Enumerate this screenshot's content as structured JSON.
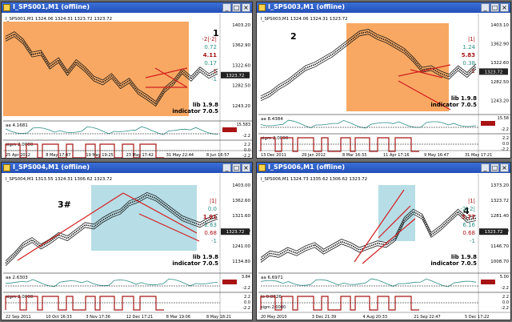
{
  "windows": [
    {
      "title": "I_SPS001,M1 (offline)",
      "info": "I_SPS001,M1  1324.06 1324.31 1323.72 1323.72",
      "number": "1",
      "lib": "lib 1.9.8",
      "indicator": "indicator 7.0.5",
      "price_labels": [
        "1403.20",
        "1362.90",
        "1322.60",
        "1282.50",
        "1243.20"
      ],
      "current_price": "1323.72",
      "ratios": [
        "-2|-2|",
        "0.72",
        "4.11",
        "0.17",
        "1",
        "-1"
      ],
      "sub1_label": "aa 4.1681",
      "sub1_scale": [
        "15.583",
        "0.00",
        "-2.2"
      ],
      "sub2_label": "sigm 2.0000",
      "sub2_scale": [
        "2.2",
        "0.0",
        "-2.2"
      ],
      "dates": [
        "25 Apr 2012",
        "8 May 17:47",
        "19 May 19:25",
        "23 May 17:42",
        "31 May 22:44",
        "8 Jun 16:57"
      ]
    },
    {
      "title": "I_SPS003,M1 (offline)",
      "info": "I_SPS003,M1  1324.06 1324.31 1323.72",
      "number": "2",
      "lib": "lib 1.9.8",
      "indicator": "indicator 7.0.5",
      "price_labels": [
        "1403.10",
        "1362.90",
        "1322.60",
        "1282.50",
        "1243.20"
      ],
      "current_price": "1323.72",
      "ratios": [
        "|1|",
        "1.24",
        "5.83",
        "0.38",
        "-1"
      ],
      "sub1_label": "aa 8.4384",
      "sub1_scale": [
        "15.58",
        "0.00",
        "-2.2"
      ],
      "sub2_label": "sigm 2.0000",
      "sub2_scale": [
        "2.2",
        "0.0",
        "-2.2"
      ],
      "dates": [
        "13 Dec 2011",
        "29 Jan 2012",
        "8 Mar 16:33",
        "11 Apr 17:16",
        "9 May 16:47",
        "31 May 17:21"
      ]
    },
    {
      "title": "I_SPS004,M1 (offline)",
      "info": "I_SPS004,M1  1313.55 1324.31 1306.62 1323.72",
      "number": "3#",
      "lib": "lib 1.9.8",
      "indicator": "indicator 7.0.5",
      "price_labels": [
        "1403.00",
        "1362.60",
        "1321.60",
        "1281.40",
        "1241.00",
        "1134.80"
      ],
      "current_price": "1323.72",
      "ratios": [
        "|1|",
        "0.0",
        "1.91",
        "2.63",
        "0.68",
        "-1"
      ],
      "sub1_label": "aa 2.6303",
      "sub1_scale": [
        "3.84",
        "0.00",
        "-2.2"
      ],
      "sub2_label": "sigm 2.0000",
      "sub2_scale": [
        "2.2",
        "0.0",
        "-2.2"
      ],
      "dates": [
        "22 Sep 2011",
        "10 Oct 16:33",
        "3 Nov 17:36",
        "12 Dec 17:21",
        "8 Mar 19:06",
        "8 May 18:21"
      ]
    },
    {
      "title": "I_SPS006,M1 (offline)",
      "info": "I_SPS006,M1  1324.73 1335.62 1306.62 1323.72",
      "number": "4",
      "lib": "lib 1.9.8",
      "indicator": "indicator 7.0.5",
      "price_labels": [
        "1373.20",
        "1323.72",
        "1281.40",
        "1190.80",
        "1146.70",
        "1008.70"
      ],
      "current_price": "1323.72",
      "ratios": [
        "|1|",
        "-2|-2|",
        "3.77",
        "6.16",
        "0.68",
        "-1"
      ],
      "sub1_label": "aa 6.6971",
      "sub1_scale": [
        "5.00",
        "0.00",
        "-2.2"
      ],
      "sub2_label": "lo 0.8826",
      "sub2_scale": [
        "2.2",
        "0.0",
        "-2.2"
      ],
      "sub3_label": "sigm 2.0000",
      "dates": [
        "20 May 2010",
        "3 Dec 21:39",
        "4 Aug 20:33",
        "21 Sep 22:47",
        "5 Dec 17:22"
      ]
    }
  ],
  "colors": {
    "orange": "#f8a862",
    "cyan": "#b7dde6",
    "trend": "#d21e1e",
    "price": "#1a1a1a",
    "green": "#1f9a53",
    "teal": "#2c8f86",
    "sub_red": "#a81414"
  }
}
